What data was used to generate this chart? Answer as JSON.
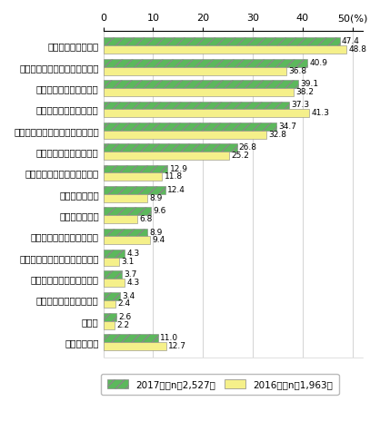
{
  "categories": [
    "特に問題なし",
    "その他",
    "認証技術の信頼性に不安",
    "電子的決済の信頼性に不安",
    "著作権等知的財産の保護に不安",
    "導入成果を得ることが困難",
    "通信速度が遅い",
    "通信料金が高い",
    "導入成果の定量的把握が困難",
    "障害時の復旧作業が困難",
    "従業員のセキュリティ意識が低い",
    "運用・管理の人材が不足",
    "運用・管理の費用が増大",
    "セキュリティ対策の確立が困難",
    "ウイルス感染に不安"
  ],
  "values_2017": [
    11.0,
    2.6,
    3.4,
    3.7,
    4.3,
    8.9,
    9.6,
    12.4,
    12.9,
    26.8,
    34.7,
    37.3,
    39.1,
    40.9,
    47.4
  ],
  "values_2016": [
    12.7,
    2.2,
    2.4,
    4.3,
    3.1,
    9.4,
    6.8,
    8.9,
    11.8,
    25.2,
    32.8,
    41.3,
    38.2,
    36.8,
    48.8
  ],
  "color_2017": "#5cb85c",
  "color_2016": "#f5f08a",
  "hatch_2017": "///",
  "xlim": [
    0,
    52
  ],
  "xticks": [
    0,
    10,
    20,
    30,
    40,
    50
  ],
  "xticklabels": [
    "0",
    "10",
    "20",
    "30",
    "40",
    "50(%)"
  ],
  "legend_2017": "2017年（n＝2,527）",
  "legend_2016": "2016年（n＝1,963）",
  "bar_height": 0.38,
  "fontsize_label": 7.5,
  "fontsize_value": 6.5,
  "fontsize_tick": 8,
  "background_color": "#ffffff"
}
